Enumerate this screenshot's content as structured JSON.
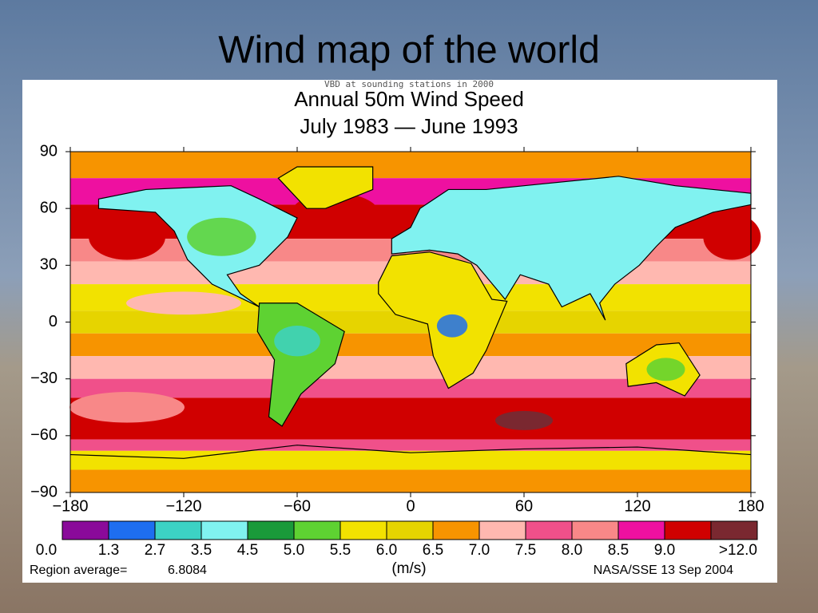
{
  "header": {
    "title": "Wind map of the world"
  },
  "map": {
    "overlay_text": "VBD at sounding stations in 2000",
    "title": "Annual 50m Wind Speed",
    "subtitle": "July 1983 — June 1993",
    "ylim": [
      -90,
      90
    ],
    "xlim": [
      -180,
      180
    ],
    "yticks": [
      {
        "value": 90,
        "label": "90"
      },
      {
        "value": 60,
        "label": "60"
      },
      {
        "value": 30,
        "label": "30"
      },
      {
        "value": 0,
        "label": "0"
      },
      {
        "value": -30,
        "label": "−30"
      },
      {
        "value": -60,
        "label": "−60"
      },
      {
        "value": -90,
        "label": "−90"
      }
    ],
    "xticks": [
      {
        "value": -180,
        "label": "−180"
      },
      {
        "value": -120,
        "label": "−120"
      },
      {
        "value": -60,
        "label": "−60"
      },
      {
        "value": 0,
        "label": "0"
      },
      {
        "value": 60,
        "label": "60"
      },
      {
        "value": 120,
        "label": "120"
      },
      {
        "value": 180,
        "label": "180"
      }
    ]
  },
  "legend": {
    "colors": [
      "#8a0a9a",
      "#1e6ef0",
      "#3cd2c4",
      "#80f2f0",
      "#1a9a3a",
      "#5ed232",
      "#f2e200",
      "#e6d400",
      "#f79400",
      "#ffb8b0",
      "#f0508a",
      "#f88888",
      "#ee10a0",
      "#d00000",
      "#7a2830"
    ],
    "labels": [
      {
        "value": 0,
        "label": "0.0"
      },
      {
        "value": 1.3,
        "label": "1.3"
      },
      {
        "value": 2.7,
        "label": "2.7"
      },
      {
        "value": 3.5,
        "label": "3.5"
      },
      {
        "value": 4.5,
        "label": "4.5"
      },
      {
        "value": 5,
        "label": "5.0"
      },
      {
        "value": 5.5,
        "label": "5.5"
      },
      {
        "value": 6,
        "label": "6.0"
      },
      {
        "value": 6.5,
        "label": "6.5"
      },
      {
        "value": 7,
        "label": "7.0"
      },
      {
        "value": 7.5,
        "label": "7.5"
      },
      {
        "value": 8,
        "label": "8.0"
      },
      {
        "value": 8.5,
        "label": "8.5"
      },
      {
        "value": 9,
        "label": "9.0"
      },
      {
        "value": 12,
        "label": ">12.0"
      }
    ],
    "unit": "(m/s)"
  },
  "footer": {
    "region_label": "Region average=",
    "region_value": "6.8084",
    "credit": "NASA/SSE 13 Sep 2004"
  }
}
